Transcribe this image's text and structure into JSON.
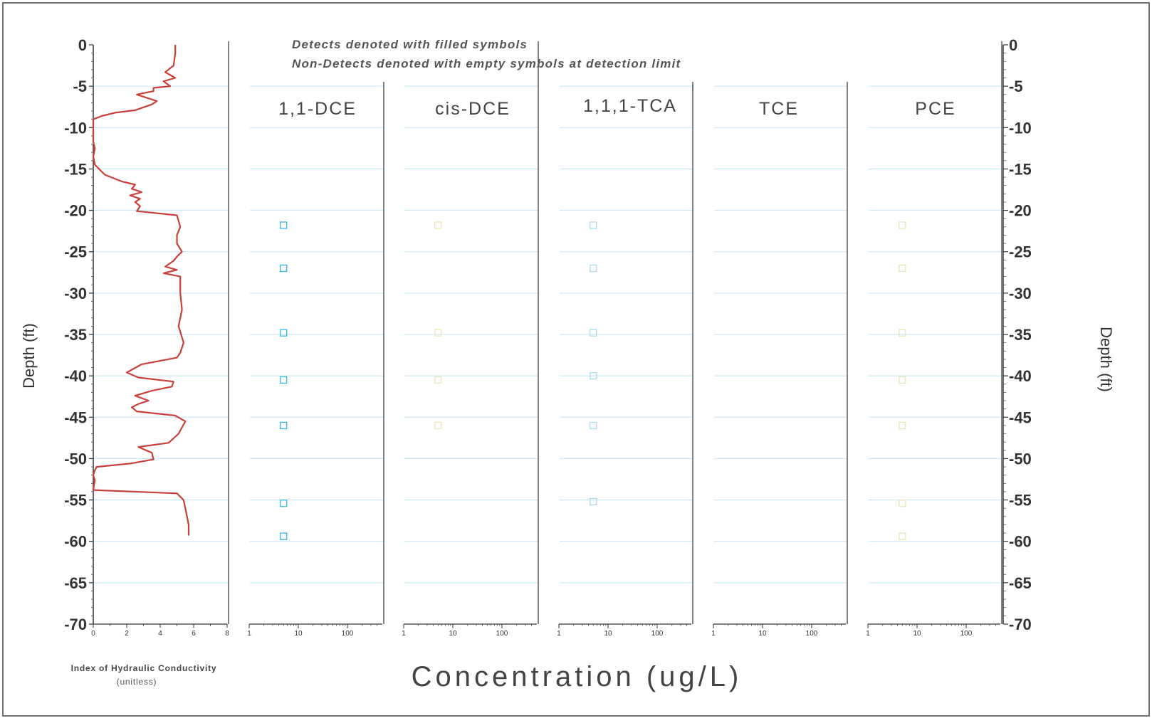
{
  "notes": {
    "line1": "Detects denoted with filled symbols",
    "line2": "Non-Detects denoted with empty symbols at detection limit"
  },
  "y_axis": {
    "left_label": "Depth (ft)",
    "right_label": "Depth (ft)",
    "ticks": [
      0,
      -5,
      -10,
      -15,
      -20,
      -25,
      -30,
      -35,
      -40,
      -45,
      -50,
      -55,
      -60,
      -65,
      -70
    ],
    "tick_labels": [
      "0",
      "-5",
      "-10",
      "-15",
      "-20",
      "-25",
      "-30",
      "-35",
      "-40",
      "-45",
      "-50",
      "-55",
      "-60",
      "-65",
      "-70"
    ]
  },
  "hydraulic_panel": {
    "xlabel_line1": "Index of Hydraulic Conductivity",
    "xlabel_line2": "(unitless)",
    "x_ticks": [
      "0",
      "2",
      "4",
      "6",
      "8"
    ]
  },
  "concentration_axis": {
    "label": "Concentration (ug/L)",
    "tick_labels": [
      "1",
      "10",
      "100"
    ]
  },
  "colors": {
    "hydraulic_line": "#c8403a",
    "grid": "#bfe6f4",
    "nd_1_1_dce": "#33b8e6",
    "nd_1_1_1_tca": "#a9dcee",
    "nd_cis_dce": "#ece7b6",
    "nd_pce": "#ece4b9"
  },
  "chart_data": [
    {
      "type": "line",
      "title": "",
      "xlabel": "Index of Hydraulic Conductivity (unitless)",
      "ylabel": "Depth (ft)",
      "xlim": [
        0,
        8
      ],
      "ylim": [
        -70,
        0
      ],
      "series": [
        {
          "x": [
            4.9,
            4.9,
            4.8,
            4.3,
            4.9,
            4.2,
            4.6,
            3.6,
            3.6,
            2.6,
            3.8,
            3.5,
            2.5,
            1.3,
            0.5,
            0.0,
            0.0,
            0.0,
            0.1,
            0.0,
            0.1,
            0.7,
            1.7,
            2.5,
            2.3,
            2.9,
            2.2,
            2.8,
            2.5,
            2.8,
            2.6,
            5.0,
            5.2,
            5.0,
            5.0,
            5.3,
            5.0,
            4.8,
            4.3,
            5.0,
            4.2,
            5.2,
            5.2,
            5.3,
            5.1,
            5.4,
            5.2,
            5.0,
            2.9,
            2.0,
            2.7,
            4.8,
            4.7,
            3.5,
            2.5,
            3.3,
            2.7,
            2.3,
            2.6,
            4.9,
            5.5,
            5.1,
            4.5,
            2.7,
            3.5,
            3.6,
            2.2,
            0.2,
            0.1,
            0.0,
            0.1,
            0.0,
            5.0,
            5.4,
            5.5,
            5.7,
            5.7,
            5.7
          ],
          "y": [
            0.0,
            -1.0,
            -2.5,
            -3.3,
            -4.0,
            -4.4,
            -5.0,
            -5.2,
            -5.6,
            -6.0,
            -6.8,
            -7.2,
            -7.9,
            -8.2,
            -8.6,
            -9.0,
            -10.5,
            -11.7,
            -12.5,
            -13.5,
            -14.5,
            -15.7,
            -16.5,
            -16.9,
            -17.4,
            -17.8,
            -18.2,
            -18.6,
            -19.0,
            -19.5,
            -20.1,
            -20.6,
            -22.0,
            -23.0,
            -24.0,
            -25.0,
            -25.6,
            -26.1,
            -26.8,
            -27.2,
            -27.6,
            -28.0,
            -30.0,
            -32.0,
            -34.0,
            -36.0,
            -37.2,
            -37.8,
            -38.6,
            -39.6,
            -40.2,
            -40.7,
            -41.3,
            -41.8,
            -42.4,
            -43.0,
            -43.4,
            -43.8,
            -44.3,
            -44.8,
            -45.5,
            -47.0,
            -48.1,
            -48.6,
            -49.3,
            -50.1,
            -50.6,
            -51.0,
            -51.4,
            -52.0,
            -52.6,
            -53.8,
            -54.2,
            -55.0,
            -56.0,
            -58.0,
            -59.0,
            -59.3
          ]
        }
      ]
    },
    {
      "type": "scatter",
      "title": "1,1-DCE",
      "xlabel": "Concentration (ug/L)",
      "x_scale": "log",
      "xlim": [
        1,
        400
      ],
      "ylim": [
        -70,
        0
      ],
      "series": [
        {
          "x": [
            5,
            5,
            5,
            5,
            5,
            5,
            5
          ],
          "y": [
            -21.8,
            -27.0,
            -34.8,
            -40.5,
            -46.0,
            -55.4,
            -59.4
          ]
        }
      ]
    },
    {
      "type": "scatter",
      "title": "cis-DCE",
      "xlabel": "Concentration (ug/L)",
      "x_scale": "log",
      "xlim": [
        1,
        400
      ],
      "ylim": [
        -70,
        0
      ],
      "series": [
        {
          "x": [
            5,
            5,
            5,
            5
          ],
          "y": [
            -21.8,
            -34.8,
            -40.5,
            -46.0
          ]
        }
      ]
    },
    {
      "type": "scatter",
      "title": "1,1,1-TCA",
      "xlabel": "Concentration (ug/L)",
      "x_scale": "log",
      "xlim": [
        1,
        400
      ],
      "ylim": [
        -70,
        0
      ],
      "series": [
        {
          "x": [
            5,
            5,
            5,
            5,
            5,
            5
          ],
          "y": [
            -21.8,
            -27.0,
            -34.8,
            -40.0,
            -46.0,
            -55.2
          ]
        }
      ]
    },
    {
      "type": "scatter",
      "title": "TCE",
      "xlabel": "Concentration (ug/L)",
      "x_scale": "log",
      "xlim": [
        1,
        400
      ],
      "ylim": [
        -70,
        0
      ],
      "series": []
    },
    {
      "type": "scatter",
      "title": "PCE",
      "xlabel": "Concentration (ug/L)",
      "x_scale": "log",
      "xlim": [
        1,
        400
      ],
      "ylim": [
        -70,
        0
      ],
      "series": [
        {
          "x": [
            5,
            5,
            5,
            5,
            5,
            5,
            5
          ],
          "y": [
            -21.8,
            -27.0,
            -34.8,
            -40.5,
            -46.0,
            -55.4,
            -59.4
          ]
        }
      ]
    }
  ]
}
